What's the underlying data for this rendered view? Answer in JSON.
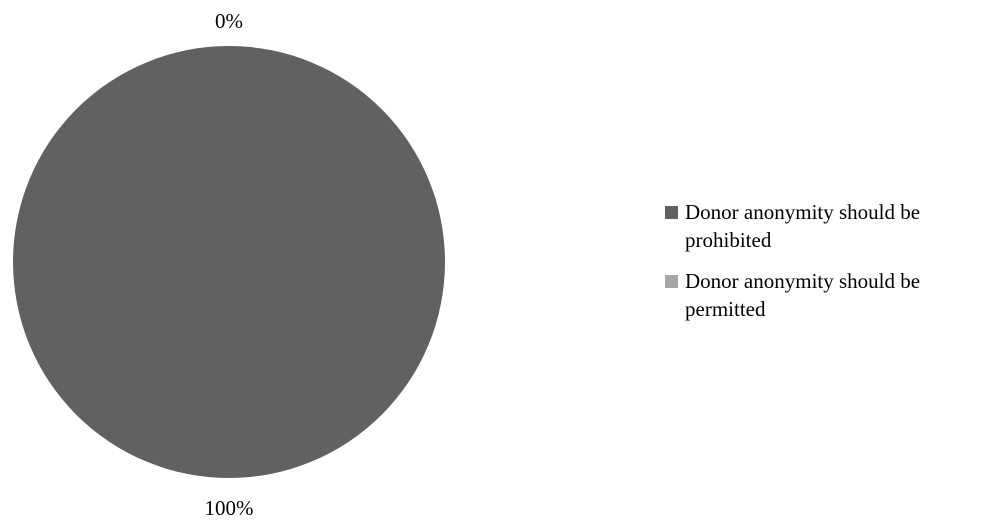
{
  "chart_data": {
    "type": "pie",
    "title": "",
    "slices": [
      {
        "label": "Donor anonymity should be prohibited",
        "value": 100,
        "display": "100%",
        "color": "#616161"
      },
      {
        "label": "Donor anonymity should be permitted",
        "value": 0,
        "display": "0%",
        "color": "#a6a6a6"
      }
    ],
    "legend_position": "right"
  }
}
